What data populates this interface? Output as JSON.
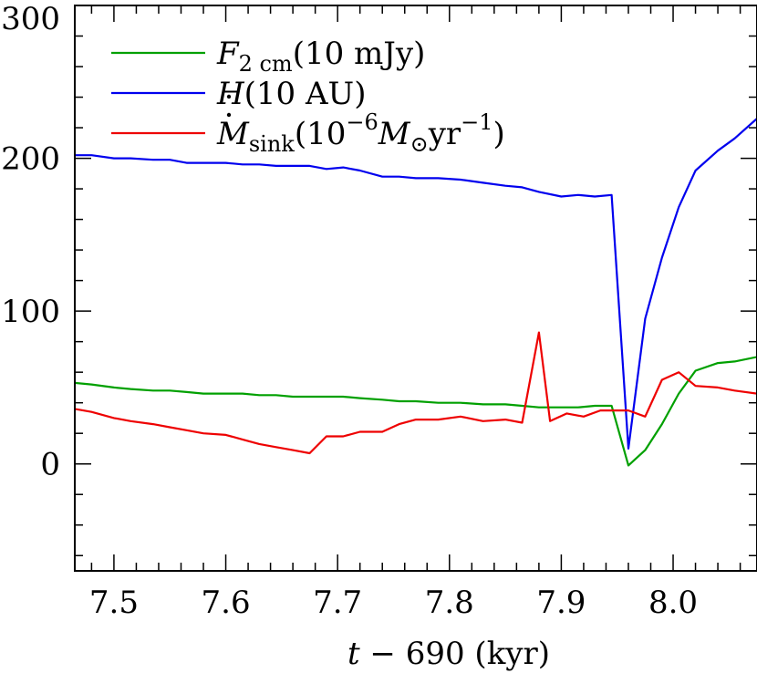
{
  "chart_data": {
    "type": "line",
    "xlabel": {
      "var": "t",
      "rest": " − 690 (kyr)"
    },
    "ylabel": "",
    "xlim": [
      7.465,
      8.075
    ],
    "ylim": [
      -70,
      300
    ],
    "x_ticks": [
      "7.5",
      "7.6",
      "7.7",
      "7.8",
      "7.9",
      "8.0"
    ],
    "x_tick_values": [
      7.5,
      7.6,
      7.7,
      7.8,
      7.9,
      8.0
    ],
    "y_ticks": [
      "0",
      "100",
      "200",
      "300"
    ],
    "y_tick_values": [
      0,
      100,
      200,
      300
    ],
    "x_minor_step": 0.02,
    "y_minor_step": 20,
    "grid": false,
    "legend_position": "top-left",
    "series": [
      {
        "key": "F2cm",
        "name": "F_2cm(10 mJy)",
        "label_parts": {
          "main": "F",
          "sub": "2 cm",
          "rest": "(10 mJy)"
        },
        "color": "#00a000",
        "x": [
          7.465,
          7.48,
          7.5,
          7.515,
          7.535,
          7.55,
          7.565,
          7.58,
          7.6,
          7.615,
          7.63,
          7.645,
          7.66,
          7.675,
          7.69,
          7.705,
          7.72,
          7.74,
          7.755,
          7.77,
          7.79,
          7.81,
          7.83,
          7.85,
          7.865,
          7.88,
          7.9,
          7.915,
          7.93,
          7.945,
          7.96,
          7.975,
          7.99,
          8.005,
          8.02,
          8.04,
          8.055,
          8.075
        ],
        "y": [
          53,
          52,
          50,
          49,
          48,
          48,
          47,
          46,
          46,
          46,
          45,
          45,
          44,
          44,
          44,
          44,
          43,
          42,
          41,
          41,
          40,
          40,
          39,
          39,
          38,
          37,
          37,
          37,
          38,
          38,
          -1,
          9,
          26,
          46,
          61,
          66,
          67,
          70
        ]
      },
      {
        "key": "H",
        "name": "H(10 AU)",
        "label_parts": {
          "main": "H",
          "sub": "",
          "rest": "(10 AU)"
        },
        "color": "#0000ee",
        "x": [
          7.465,
          7.48,
          7.5,
          7.515,
          7.535,
          7.55,
          7.565,
          7.58,
          7.6,
          7.615,
          7.63,
          7.645,
          7.66,
          7.675,
          7.69,
          7.705,
          7.72,
          7.74,
          7.755,
          7.77,
          7.79,
          7.81,
          7.83,
          7.85,
          7.865,
          7.88,
          7.9,
          7.915,
          7.93,
          7.945,
          7.96,
          7.975,
          7.99,
          8.005,
          8.02,
          8.04,
          8.055,
          8.075
        ],
        "y": [
          202,
          202,
          200,
          200,
          199,
          199,
          197,
          197,
          197,
          196,
          196,
          195,
          195,
          195,
          193,
          194,
          192,
          188,
          188,
          187,
          187,
          186,
          184,
          182,
          181,
          178,
          175,
          176,
          175,
          176,
          10,
          95,
          135,
          168,
          192,
          205,
          213,
          226
        ]
      },
      {
        "key": "Msink",
        "name": "M_sink(10^-6 M_sun yr^-1)",
        "label_parts": {
          "main": "M",
          "sub": "sink",
          "rest": "(10",
          "sup1": "−6",
          "rest2": "M",
          "sun": "⊙",
          "rest3": "yr",
          "sup2": "−1",
          "close": ")"
        },
        "color": "#ee0000",
        "x": [
          7.465,
          7.48,
          7.5,
          7.515,
          7.535,
          7.55,
          7.565,
          7.58,
          7.6,
          7.615,
          7.63,
          7.645,
          7.66,
          7.675,
          7.69,
          7.705,
          7.72,
          7.74,
          7.755,
          7.77,
          7.79,
          7.81,
          7.83,
          7.85,
          7.865,
          7.88,
          7.89,
          7.905,
          7.92,
          7.935,
          7.945,
          7.96,
          7.975,
          7.99,
          8.005,
          8.02,
          8.04,
          8.055,
          8.075
        ],
        "y": [
          36,
          34,
          30,
          28,
          26,
          24,
          22,
          20,
          19,
          16,
          13,
          11,
          9,
          7,
          18,
          18,
          21,
          21,
          26,
          29,
          29,
          31,
          28,
          29,
          27,
          86,
          28,
          33,
          31,
          35,
          35,
          35,
          31,
          55,
          60,
          51,
          50,
          48,
          46
        ]
      }
    ]
  }
}
